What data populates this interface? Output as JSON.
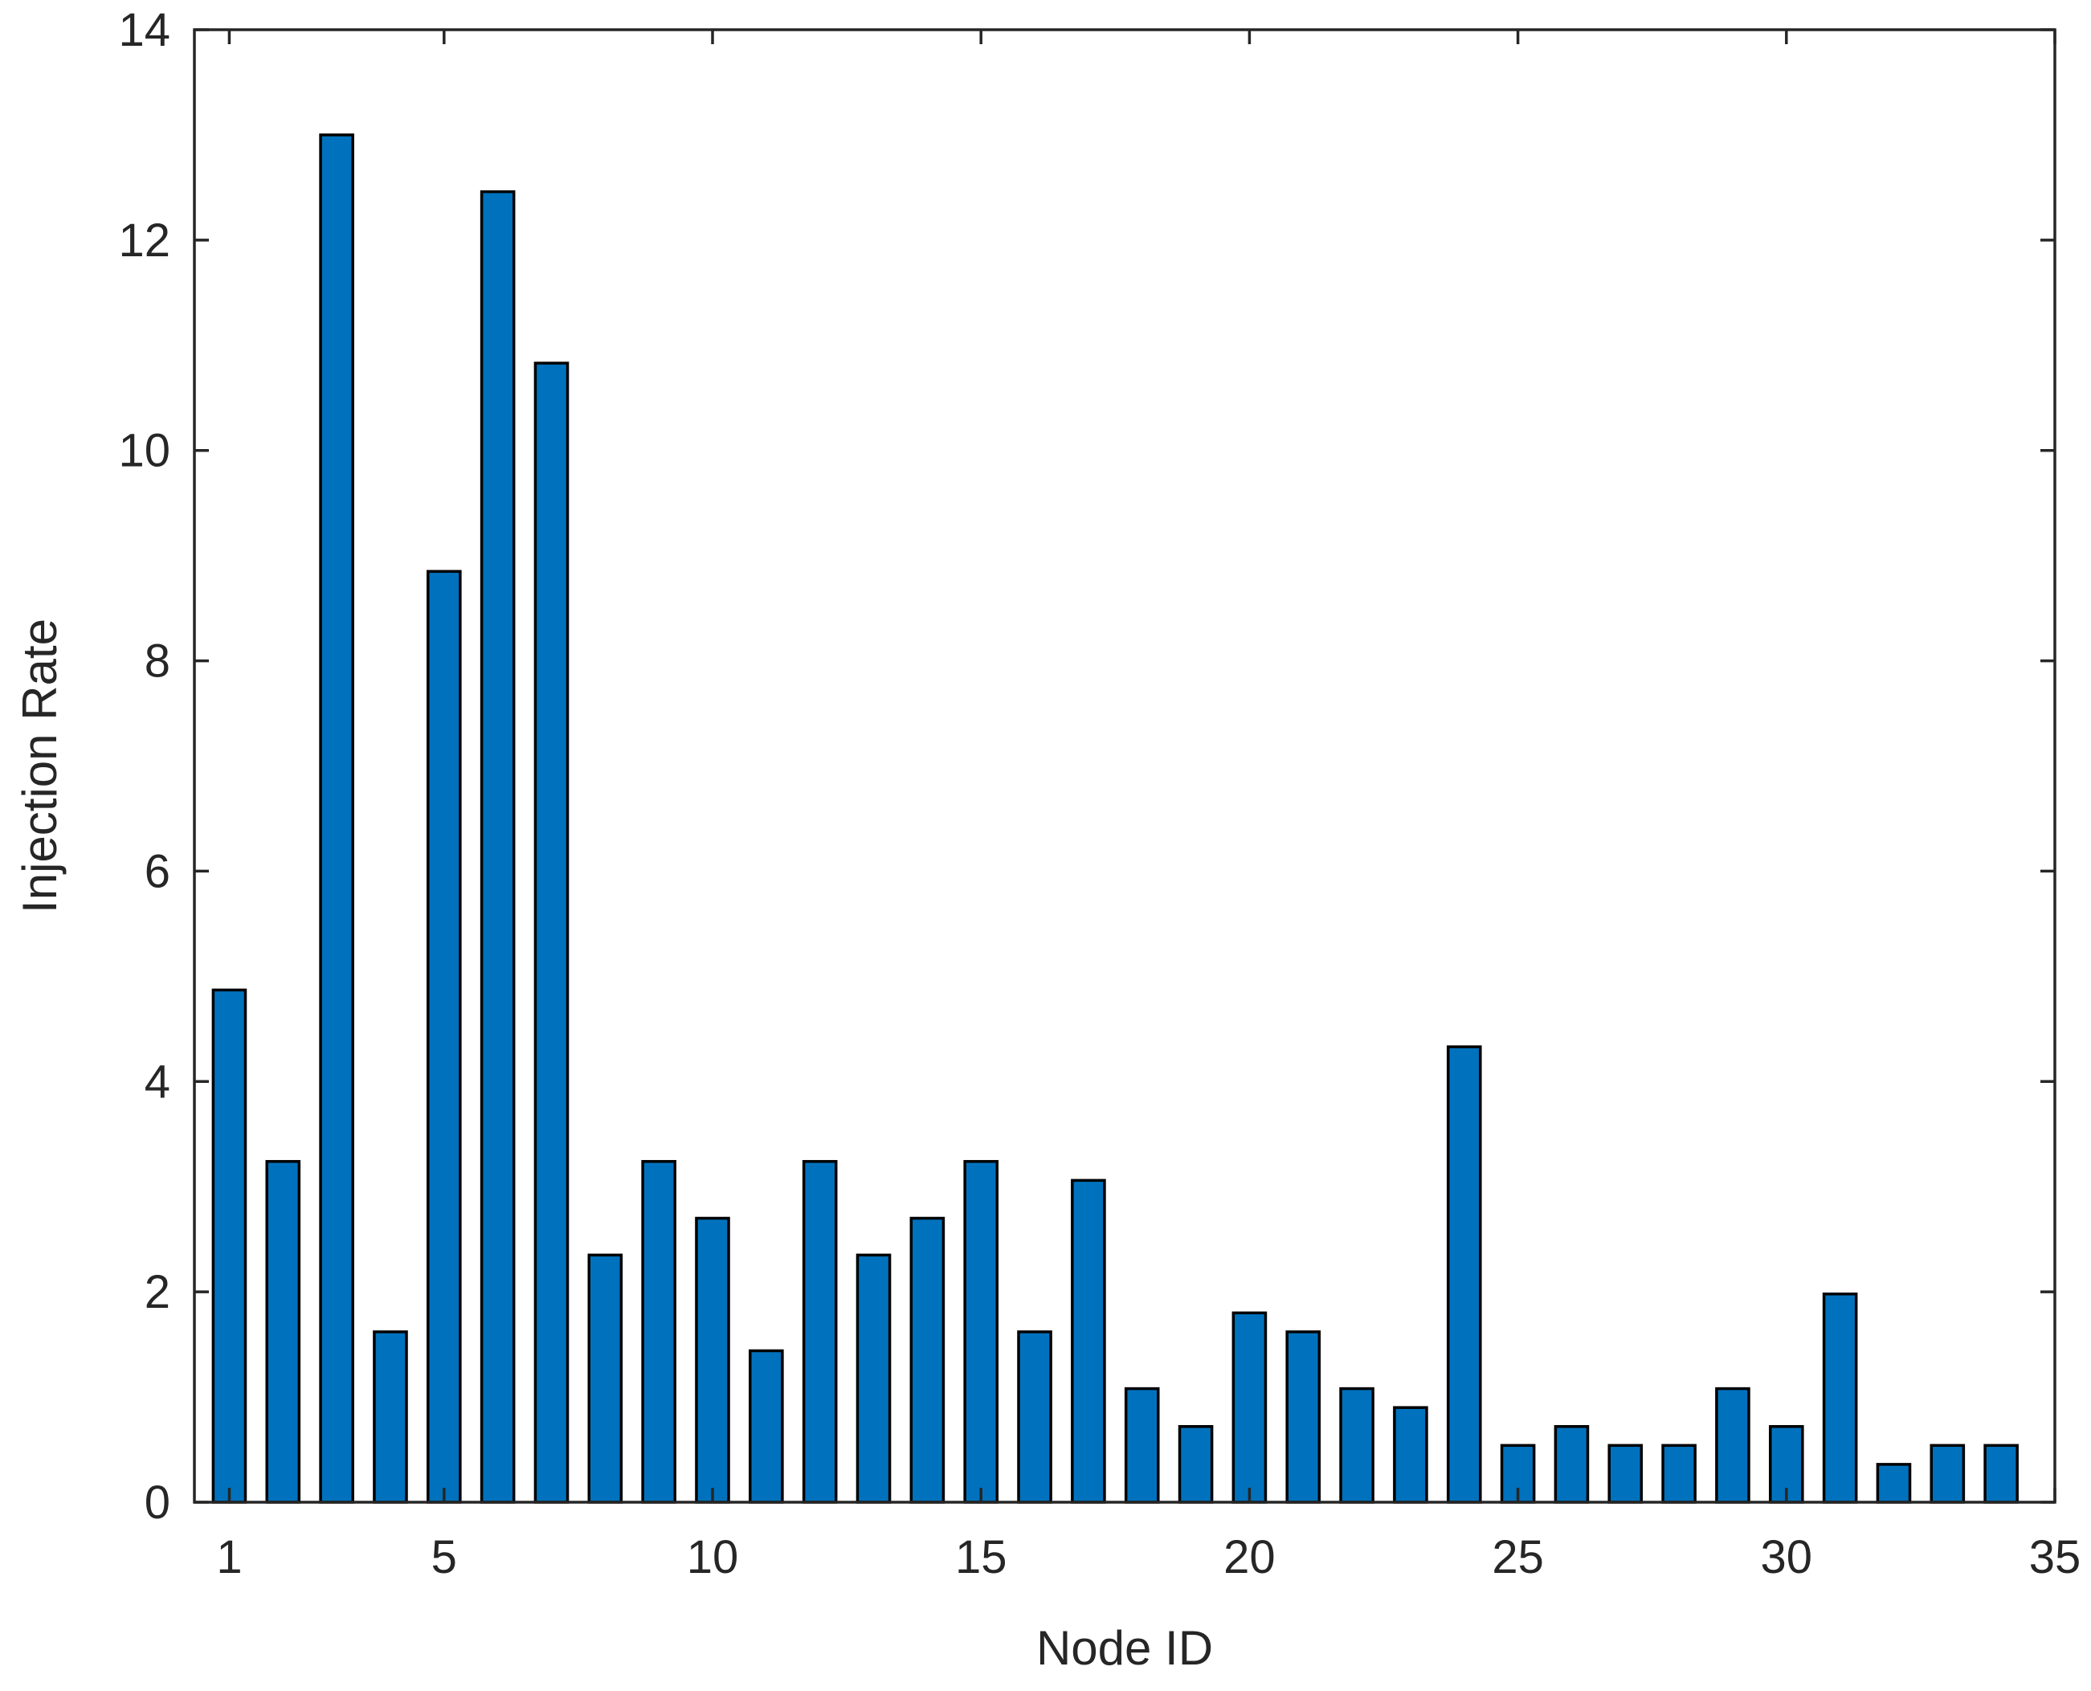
{
  "chart_data": {
    "type": "bar",
    "xlabel": "Node ID",
    "ylabel": "Injection Rate",
    "xlim": [
      0.35,
      35
    ],
    "ylim": [
      0,
      14
    ],
    "x_ticks": [
      1,
      5,
      10,
      15,
      20,
      25,
      30,
      35
    ],
    "y_ticks": [
      0,
      2,
      4,
      6,
      8,
      10,
      12,
      14
    ],
    "bar_color": "#0072BD",
    "grid": false,
    "x": [
      1,
      2,
      3,
      4,
      5,
      6,
      7,
      8,
      9,
      10,
      11,
      12,
      13,
      14,
      15,
      16,
      17,
      18,
      19,
      20,
      21,
      22,
      23,
      24,
      25,
      26,
      27,
      28,
      29,
      30,
      31,
      32,
      33,
      34
    ],
    "values": [
      4.87,
      3.24,
      13.0,
      1.62,
      8.85,
      12.46,
      10.83,
      2.35,
      3.24,
      2.7,
      1.44,
      3.24,
      2.35,
      2.7,
      3.24,
      1.62,
      3.06,
      1.08,
      0.72,
      1.8,
      1.62,
      1.08,
      0.9,
      4.33,
      0.54,
      0.72,
      0.54,
      0.54,
      1.08,
      0.72,
      1.98,
      0.36,
      0.54,
      0.54
    ]
  }
}
